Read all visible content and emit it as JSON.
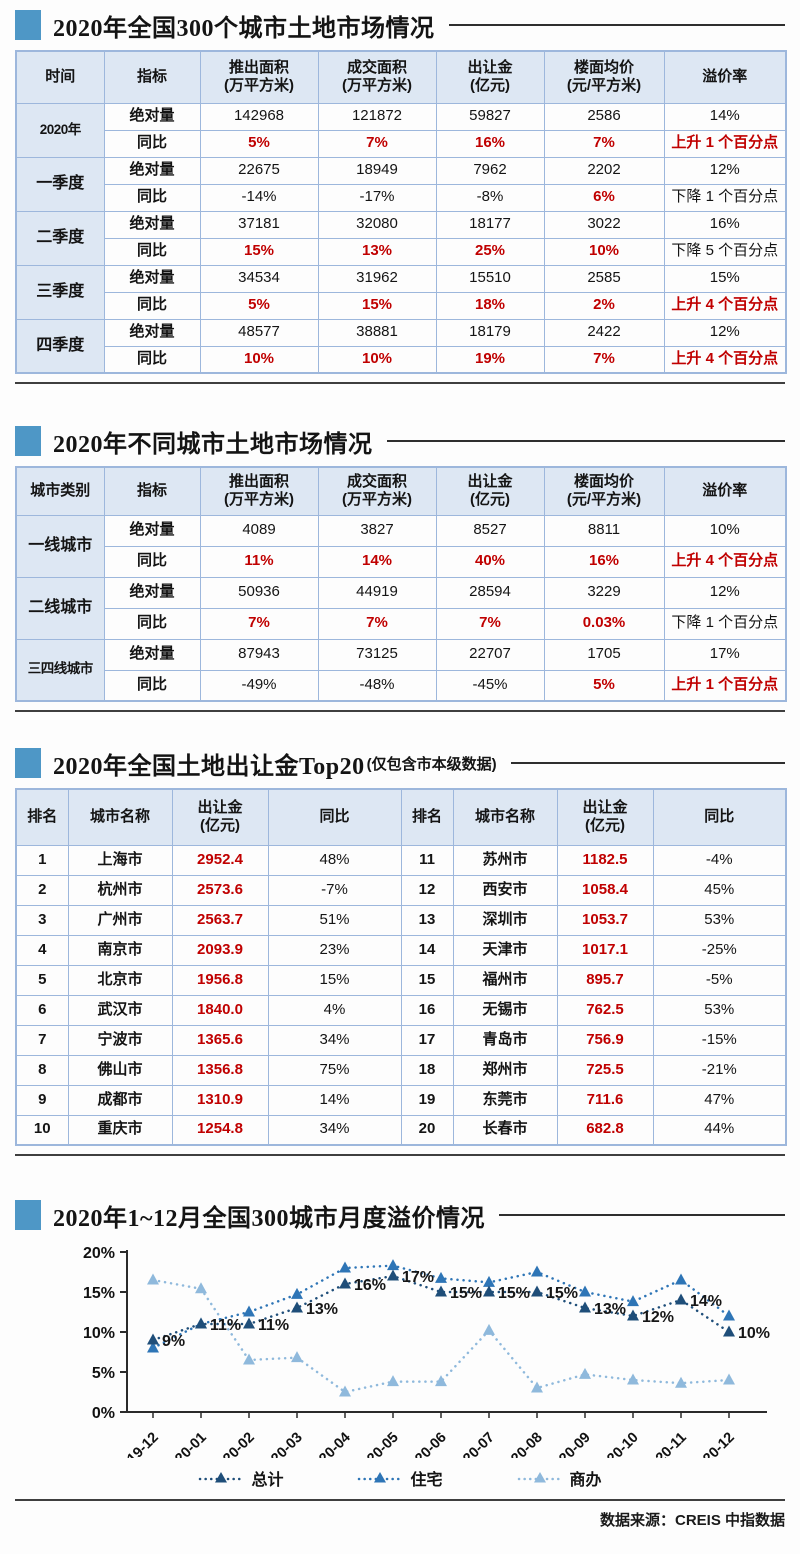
{
  "theme": {
    "accent_blue": "#4e97c6",
    "table_border": "#9db7dc",
    "header_bg": "#dde7f3",
    "highlight_red": "#c00000"
  },
  "sections": {
    "national": {
      "title": "2020年全国300个城市土地市场情况",
      "table": {
        "headers": [
          [
            "时间"
          ],
          [
            "指标"
          ],
          [
            "推出面积",
            "(万平方米)"
          ],
          [
            "成交面积",
            "(万平方米)"
          ],
          [
            "出让金",
            "(亿元)"
          ],
          [
            "楼面均价",
            "(元/平方米)"
          ],
          [
            "溢价率"
          ]
        ],
        "row_labels": {
          "abs": "绝对量",
          "yoy": "同比"
        },
        "groups": [
          {
            "period": "2020年",
            "abs": [
              "142968",
              "121872",
              "59827",
              "2586",
              "14%"
            ],
            "yoy": [
              "5%",
              "7%",
              "16%",
              "7%",
              "上升 1 个百分点"
            ],
            "yoy_red": [
              true,
              true,
              true,
              true,
              true
            ]
          },
          {
            "period": "一季度",
            "abs": [
              "22675",
              "18949",
              "7962",
              "2202",
              "12%"
            ],
            "yoy": [
              "-14%",
              "-17%",
              "-8%",
              "6%",
              "下降 1 个百分点"
            ],
            "yoy_red": [
              false,
              false,
              false,
              true,
              false
            ]
          },
          {
            "period": "二季度",
            "abs": [
              "37181",
              "32080",
              "18177",
              "3022",
              "16%"
            ],
            "yoy": [
              "15%",
              "13%",
              "25%",
              "10%",
              "下降 5 个百分点"
            ],
            "yoy_red": [
              true,
              true,
              true,
              true,
              false
            ]
          },
          {
            "period": "三季度",
            "abs": [
              "34534",
              "31962",
              "15510",
              "2585",
              "15%"
            ],
            "yoy": [
              "5%",
              "15%",
              "18%",
              "2%",
              "上升 4 个百分点"
            ],
            "yoy_red": [
              true,
              true,
              true,
              true,
              true
            ]
          },
          {
            "period": "四季度",
            "abs": [
              "48577",
              "38881",
              "18179",
              "2422",
              "12%"
            ],
            "yoy": [
              "10%",
              "10%",
              "19%",
              "7%",
              "上升 4 个百分点"
            ],
            "yoy_red": [
              true,
              true,
              true,
              true,
              true
            ]
          }
        ]
      }
    },
    "by_city_tier": {
      "title": "2020年不同城市土地市场情况",
      "table": {
        "headers": [
          [
            "城市类别"
          ],
          [
            "指标"
          ],
          [
            "推出面积",
            "(万平方米)"
          ],
          [
            "成交面积",
            "(万平方米)"
          ],
          [
            "出让金",
            "(亿元)"
          ],
          [
            "楼面均价",
            "(元/平方米)"
          ],
          [
            "溢价率"
          ]
        ],
        "row_labels": {
          "abs": "绝对量",
          "yoy": "同比"
        },
        "groups": [
          {
            "period": "一线城市",
            "abs": [
              "4089",
              "3827",
              "8527",
              "8811",
              "10%"
            ],
            "yoy": [
              "11%",
              "14%",
              "40%",
              "16%",
              "上升 4 个百分点"
            ],
            "yoy_red": [
              true,
              true,
              true,
              true,
              true
            ]
          },
          {
            "period": "二线城市",
            "abs": [
              "50936",
              "44919",
              "28594",
              "3229",
              "12%"
            ],
            "yoy": [
              "7%",
              "7%",
              "7%",
              "0.03%",
              "下降 1 个百分点"
            ],
            "yoy_red": [
              true,
              true,
              true,
              true,
              false
            ]
          },
          {
            "period": "三四线城市",
            "abs": [
              "87943",
              "73125",
              "22707",
              "1705",
              "17%"
            ],
            "yoy": [
              "-49%",
              "-48%",
              "-45%",
              "5%",
              "上升 1 个百分点"
            ],
            "yoy_red": [
              false,
              false,
              false,
              true,
              true
            ]
          }
        ]
      }
    },
    "top20": {
      "title": "2020年全国土地出让金Top20",
      "subtitle": "(仅包含市本级数据)",
      "headers": [
        [
          "排名"
        ],
        [
          "城市名称"
        ],
        [
          "出让金",
          "(亿元)"
        ],
        [
          "同比"
        ]
      ],
      "left_rows": [
        [
          "1",
          "上海市",
          "2952.4",
          "48%"
        ],
        [
          "2",
          "杭州市",
          "2573.6",
          "-7%"
        ],
        [
          "3",
          "广州市",
          "2563.7",
          "51%"
        ],
        [
          "4",
          "南京市",
          "2093.9",
          "23%"
        ],
        [
          "5",
          "北京市",
          "1956.8",
          "15%"
        ],
        [
          "6",
          "武汉市",
          "1840.0",
          "4%"
        ],
        [
          "7",
          "宁波市",
          "1365.6",
          "34%"
        ],
        [
          "8",
          "佛山市",
          "1356.8",
          "75%"
        ],
        [
          "9",
          "成都市",
          "1310.9",
          "14%"
        ],
        [
          "10",
          "重庆市",
          "1254.8",
          "34%"
        ]
      ],
      "right_rows": [
        [
          "11",
          "苏州市",
          "1182.5",
          "-4%"
        ],
        [
          "12",
          "西安市",
          "1058.4",
          "45%"
        ],
        [
          "13",
          "深圳市",
          "1053.7",
          "53%"
        ],
        [
          "14",
          "天津市",
          "1017.1",
          "-25%"
        ],
        [
          "15",
          "福州市",
          "895.7",
          "-5%"
        ],
        [
          "16",
          "无锡市",
          "762.5",
          "53%"
        ],
        [
          "17",
          "青岛市",
          "756.9",
          "-15%"
        ],
        [
          "18",
          "郑州市",
          "725.5",
          "-21%"
        ],
        [
          "19",
          "东莞市",
          "711.6",
          "47%"
        ],
        [
          "20",
          "长春市",
          "682.8",
          "44%"
        ]
      ]
    },
    "premium_chart": {
      "title": "2020年1~12月全国300城市月度溢价情况"
    }
  },
  "chart_data": {
    "type": "line",
    "title": "2020年1~12月全国300城市月度溢价情况",
    "x": [
      "19-12",
      "20-01",
      "20-02",
      "20-03",
      "20-04",
      "20-05",
      "20-06",
      "20-07",
      "20-08",
      "20-09",
      "20-10",
      "20-11",
      "20-12"
    ],
    "ylim": [
      0,
      20
    ],
    "yticks": [
      "0%",
      "5%",
      "10%",
      "15%",
      "20%"
    ],
    "grid": false,
    "legend_position": "bottom",
    "series": [
      {
        "name": "总计",
        "color": "#1f4e79",
        "values": [
          9,
          11,
          11,
          13,
          16,
          17,
          15,
          15,
          15,
          13,
          12,
          14,
          10
        ],
        "labels": [
          "9%",
          "11%",
          "11%",
          "13%",
          "16%",
          "17%",
          "15%",
          "15%",
          "15%",
          "13%",
          "12%",
          "14%",
          "10%"
        ]
      },
      {
        "name": "住宅",
        "color": "#2e75b6",
        "values": [
          8,
          11,
          12.5,
          14.7,
          18,
          18.3,
          16.7,
          16.2,
          17.5,
          15,
          13.8,
          16.5,
          12
        ]
      },
      {
        "name": "商办",
        "color": "#8fb9dc",
        "values": [
          16.5,
          15.4,
          6.5,
          6.8,
          2.5,
          3.8,
          3.8,
          10.2,
          3,
          4.7,
          4,
          3.6,
          4
        ]
      }
    ]
  },
  "footer": {
    "source": "数据来源：CREIS 中指数据"
  }
}
